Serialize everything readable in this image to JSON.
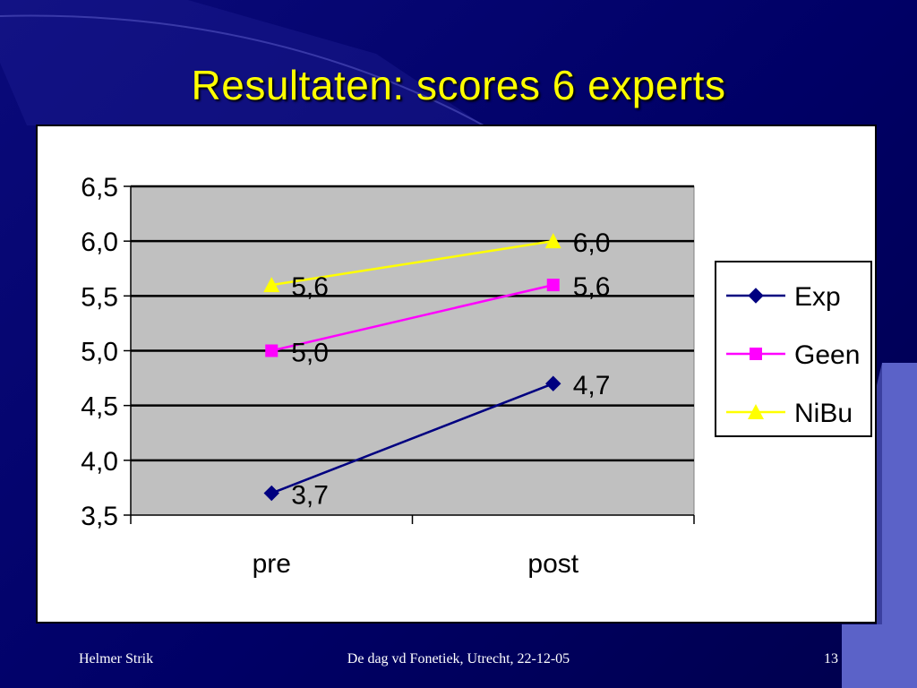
{
  "slide": {
    "title": "Resultaten: scores 6 experts",
    "footer_left": "Helmer Strik",
    "footer_center": "De dag vd Fonetiek, Utrecht, 22-12-05",
    "page_number": "13"
  },
  "colors": {
    "background": "#000066",
    "title": "#ffff00",
    "plot_area": "#c0c0c0",
    "decor": "#5b62c8"
  },
  "chart_data": {
    "type": "line",
    "title": "",
    "xlabel": "",
    "ylabel": "",
    "categories": [
      "pre",
      "post"
    ],
    "ylim": [
      3.5,
      6.5
    ],
    "yticks": [
      "3,5",
      "4,0",
      "4,5",
      "5,0",
      "5,5",
      "6,0",
      "6,5"
    ],
    "grid": true,
    "legend": "right",
    "series": [
      {
        "name": "Exp",
        "values": [
          3.7,
          4.7
        ],
        "labels": [
          "3,7",
          "4,7"
        ],
        "color": "#000080",
        "marker": "diamond"
      },
      {
        "name": "Geen",
        "values": [
          5.0,
          5.6
        ],
        "labels": [
          "5,0",
          "5,6"
        ],
        "color": "#ff00ff",
        "marker": "square"
      },
      {
        "name": "NiBu",
        "values": [
          5.6,
          6.0
        ],
        "labels": [
          "5,6",
          "6,0"
        ],
        "color": "#ffff00",
        "marker": "triangle"
      }
    ]
  }
}
